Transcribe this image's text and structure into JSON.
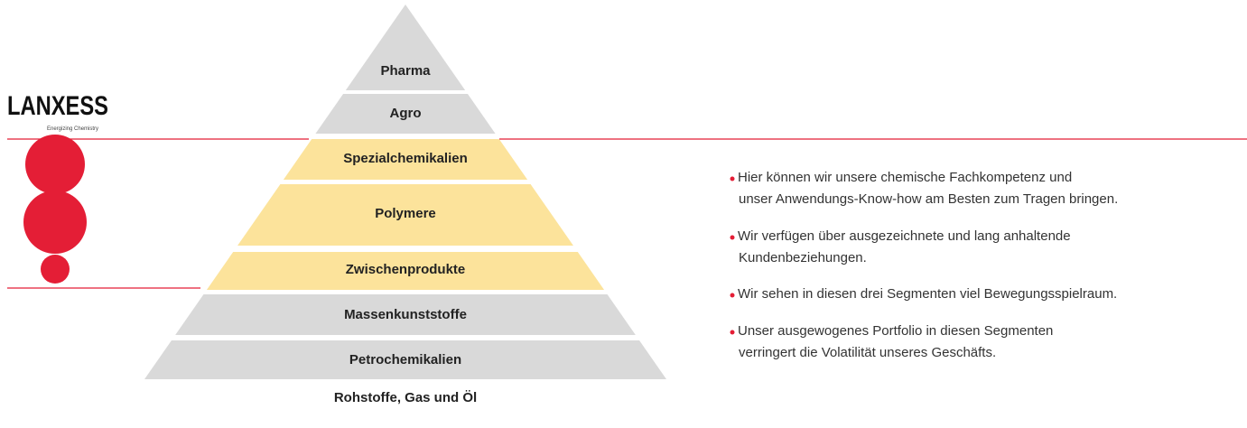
{
  "logo": {
    "name": "LANXESS",
    "tagline": "Energizing Chemistry"
  },
  "pyramid": {
    "levels": [
      "Pharma",
      "Agro",
      "Spezialchemikalien",
      "Polymere",
      "Zwischenprodukte",
      "Massenkunststoffe",
      "Petrochemikalien"
    ],
    "base": "Rohstoffe, Gas und Öl"
  },
  "bullets": [
    [
      "Hier können wir unsere chemische Fachkompetenz und",
      "unser Anwendungs-Know-how am Besten zum Tragen bringen."
    ],
    [
      "Wir verfügen über ausgezeichnete und lang anhaltende",
      "Kundenbeziehungen."
    ],
    [
      "Wir sehen in diesen drei Segmenten viel Bewegungsspielraum."
    ],
    [
      "Unser ausgewogenes Portfolio in diesen Segmenten",
      "verringert die Volatilität unseres Geschäfts."
    ]
  ]
}
